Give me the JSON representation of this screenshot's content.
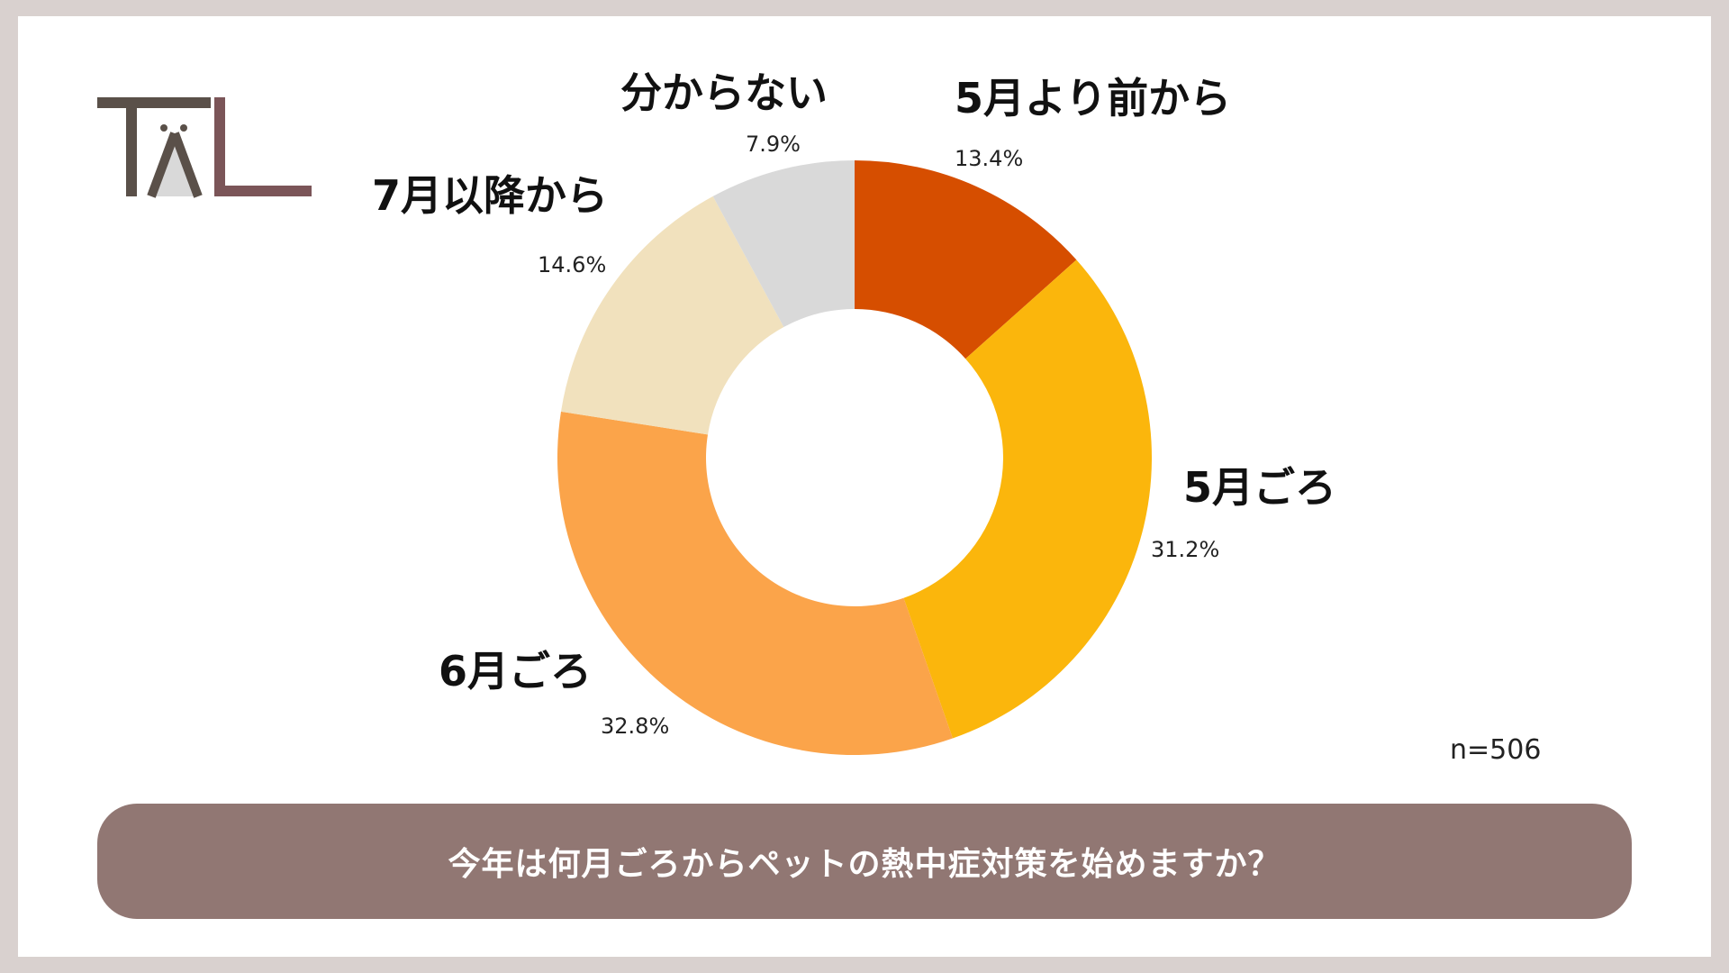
{
  "logo": {
    "name": "TAL-logo",
    "dark_color": "#5a5049",
    "accent_color": "#7b5558",
    "light_color": "#d9d9d9"
  },
  "chart_data": {
    "type": "pie",
    "categories": [
      "5月より前から",
      "5月ごろ",
      "6月ごろ",
      "7月以降から",
      "分からない"
    ],
    "values": [
      13.4,
      31.2,
      32.8,
      14.6,
      7.9
    ],
    "value_labels": [
      "13.4%",
      "31.2%",
      "32.8%",
      "14.6%",
      "7.9%"
    ],
    "colors": [
      "#d64e00",
      "#fbb60c",
      "#fba44a",
      "#f1e1bd",
      "#d9d9d9"
    ],
    "donut": true,
    "legend": "none",
    "title": "今年は何月ごろからペットの熱中症対策を始めますか？"
  },
  "note": {
    "sample_size": "n=506"
  }
}
